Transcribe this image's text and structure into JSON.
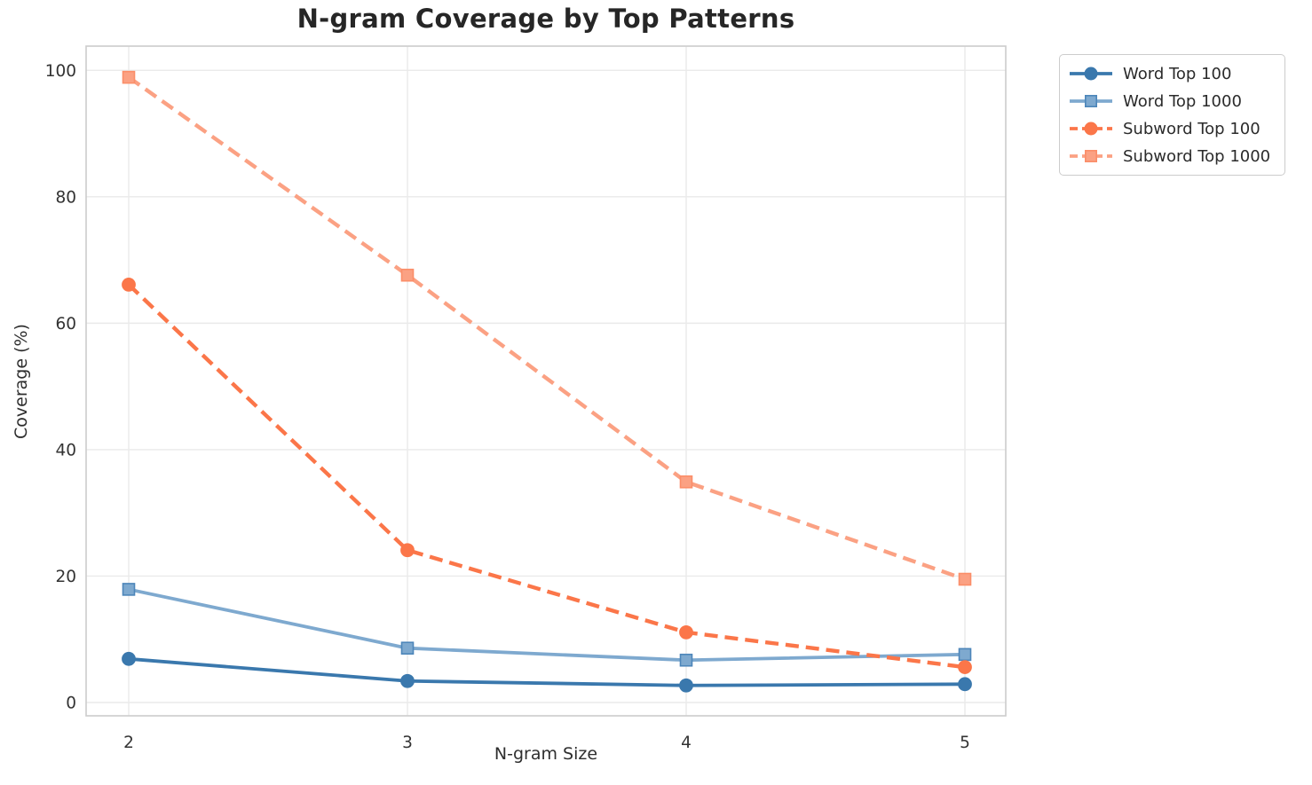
{
  "chart_data": {
    "type": "line",
    "title": "N-gram Coverage by Top Patterns",
    "xlabel": "N-gram Size",
    "ylabel": "Coverage (%)",
    "x": [
      2,
      3,
      4,
      5
    ],
    "x_tick_labels": [
      "2",
      "3",
      "4",
      "5"
    ],
    "y_ticks": [
      0,
      20,
      40,
      60,
      80,
      100
    ],
    "xlim": [
      1.85,
      5.15
    ],
    "ylim": [
      -2.1,
      103.8
    ],
    "grid": true,
    "legend_position": "outside upper right",
    "series": [
      {
        "name": "Word Top 100",
        "color": "#3a78ad",
        "marker_edge": "#3a78ad",
        "marker": "circle",
        "line_style": "solid",
        "values": [
          6.9,
          3.4,
          2.7,
          2.9
        ]
      },
      {
        "name": "Word Top 1000",
        "color": "#7ea9cf",
        "marker_edge": "#4d86ba",
        "marker": "square",
        "line_style": "solid",
        "values": [
          17.9,
          8.6,
          6.7,
          7.6
        ]
      },
      {
        "name": "Subword Top 100",
        "color": "#fb7649",
        "marker_edge": "#fb7649",
        "marker": "circle",
        "line_style": "dashed",
        "values": [
          66.1,
          24.1,
          11.1,
          5.6
        ]
      },
      {
        "name": "Subword Top 1000",
        "color": "#fba183",
        "marker_edge": "#fb8e69",
        "marker": "square",
        "line_style": "dashed",
        "values": [
          98.9,
          67.6,
          34.9,
          19.5
        ]
      }
    ]
  },
  "colors": {
    "grid": "#eaeaea",
    "spine": "#cccccc",
    "tick_text": "#333333",
    "title_text": "#262626"
  }
}
